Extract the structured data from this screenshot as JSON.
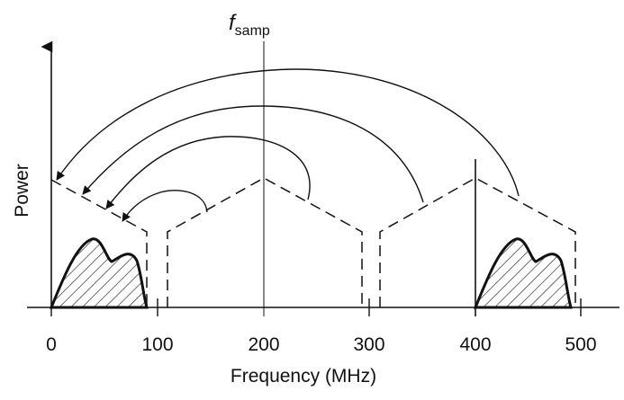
{
  "figure": {
    "xlabel": "Frequency (MHz)",
    "ylabel": "Power",
    "tick_labels": [
      "0",
      "100",
      "200",
      "300",
      "400",
      "500"
    ],
    "fsamp_label": {
      "main": "f",
      "sub": "samp"
    }
  },
  "chart_data": {
    "type": "diagram",
    "xlabel": "Frequency (MHz)",
    "ylabel": "Power",
    "x_ticks": [
      0,
      100,
      200,
      300,
      400,
      500
    ],
    "xlim": [
      -20,
      540
    ],
    "sampling_frequency_mhz": 200,
    "original_signal_band_mhz": [
      400,
      490
    ],
    "aliased_signal_band_mhz": [
      0,
      90
    ],
    "dashed_alias_bands_mhz": [
      [
        0,
        90
      ],
      [
        110,
        290
      ],
      [
        310,
        490
      ]
    ],
    "fold_arrows_mhz": [
      [
        440,
        10
      ],
      [
        350,
        32
      ],
      [
        245,
        70
      ],
      [
        160,
        110
      ]
    ],
    "style": {
      "line": "#111111",
      "background": "#ffffff"
    }
  }
}
